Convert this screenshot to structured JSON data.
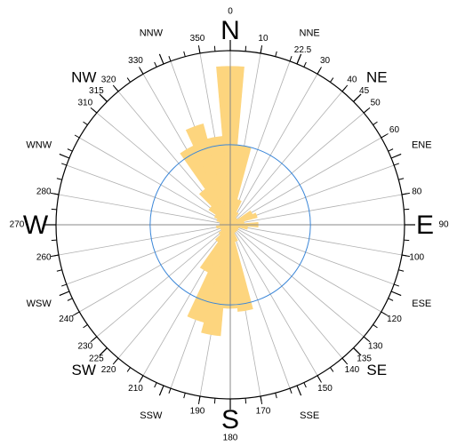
{
  "chart_data": {
    "type": "windrose",
    "x": [
      0,
      10,
      20,
      30,
      40,
      50,
      60,
      70,
      80,
      90,
      100,
      110,
      120,
      130,
      140,
      150,
      160,
      170,
      180,
      190,
      200,
      210,
      220,
      230,
      240,
      250,
      260,
      270,
      280,
      290,
      300,
      310,
      320,
      330,
      340,
      350
    ],
    "values": [
      91,
      46,
      15,
      8,
      5,
      5,
      14,
      16,
      8,
      16,
      10,
      5,
      5,
      5,
      5,
      5,
      10,
      50,
      48,
      64,
      58,
      30,
      12,
      8,
      6,
      6,
      8,
      6,
      6,
      8,
      10,
      15,
      25,
      50,
      60,
      51
    ],
    "color": "#fdd57e",
    "rlim": [
      0,
      100
    ],
    "reference_circle": 46,
    "reference_color": "#3a86d8",
    "angle_ticks": [
      0,
      10,
      22.5,
      30,
      40,
      45,
      50,
      60,
      80,
      90,
      100,
      120,
      130,
      135,
      140,
      150,
      170,
      180,
      190,
      210,
      220,
      225,
      230,
      240,
      260,
      270,
      280,
      310,
      315,
      320,
      330,
      350
    ],
    "compass_labels": [
      "N",
      "NNE",
      "NE",
      "ENE",
      "E",
      "ESE",
      "SE",
      "SSE",
      "S",
      "SSW",
      "SW",
      "WSW",
      "W",
      "WNW",
      "NW",
      "NNW"
    ]
  }
}
